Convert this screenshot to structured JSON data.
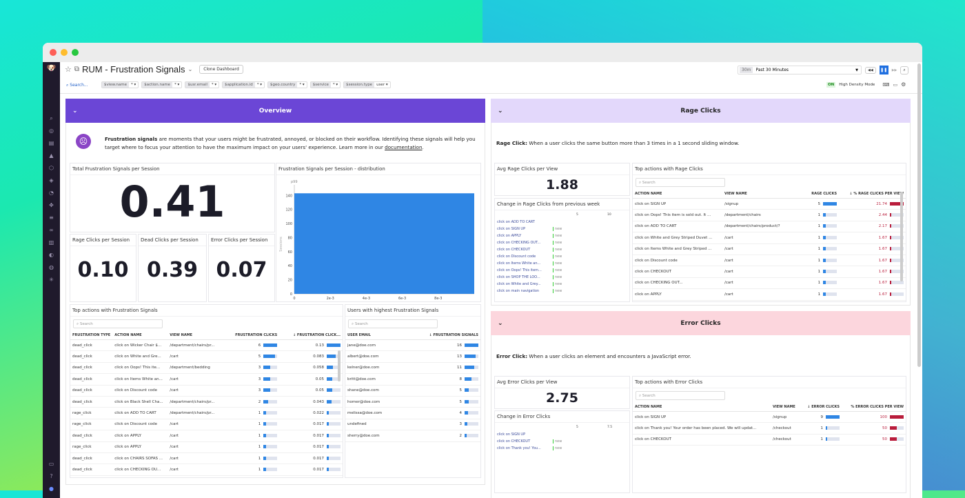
{
  "header": {
    "title": "RUM - Frustration Signals",
    "clone_button": "Clone Dashboard",
    "time_badge": "30m",
    "time_range": "Past 30 Minutes",
    "search_label": "Search...",
    "density_badge": "ON",
    "density_label": "High Density Mode"
  },
  "filters": [
    {
      "key": "$view.name",
      "value": "*"
    },
    {
      "key": "$action.name",
      "value": "*"
    },
    {
      "key": "$usr.email",
      "value": "*"
    },
    {
      "key": "$application.id",
      "value": "*"
    },
    {
      "key": "$geo.country",
      "value": "*"
    },
    {
      "key": "$service",
      "value": "*"
    },
    {
      "key": "$session.type",
      "value": "user"
    }
  ],
  "colors": {
    "overview": "#6b46d6",
    "rage": "#e3d8fb",
    "error": "#fcd6dd",
    "bar": "#2f86e4",
    "red": "#b91c3b"
  },
  "overview": {
    "title": "Overview",
    "intro_bold": "Frustration signals",
    "intro_text": " are moments that your users might be frustrated, annoyed, or blocked on their workflow. Identifying these signals will help you target where to focus your attention to have the maximum impact on your users' experience. Learn more in our ",
    "intro_link": "documentation",
    "intro_end": ".",
    "total_title": "Total Frustration Signals per Session",
    "total_value": "0.41",
    "rage_title": "Rage Clicks per Session",
    "rage_value": "0.10",
    "dead_title": "Dead Clicks per Session",
    "dead_value": "0.39",
    "error_title": "Error Clicks per Session",
    "error_value": "0.07",
    "dist_title": "Frustration Signals per Session - distribution",
    "actions_title": "Top actions with Frustration Signals",
    "actions_search": "Search",
    "actions_cols": [
      "FRUSTRATION TYPE",
      "ACTION NAME",
      "VIEW NAME",
      "FRUSTRATION CLICKS",
      "↓ FRUSTRATION CLICK..."
    ],
    "actions_rows": [
      [
        "dead_click",
        "click on Wicker Chair $...",
        "/department/chairs/pr...",
        6,
        0.13
      ],
      [
        "dead_click",
        "click on White and Gre...",
        "/cart",
        5,
        0.083
      ],
      [
        "dead_click",
        "click on Oops! This ite...",
        "/department/bedding",
        3,
        0.058
      ],
      [
        "dead_click",
        "click on Items White an...",
        "/cart",
        3,
        0.05
      ],
      [
        "dead_click",
        "click on Discount code",
        "/cart",
        3,
        0.05
      ],
      [
        "dead_click",
        "click on Black Shell Cha...",
        "/department/chairs/pr...",
        2,
        0.043
      ],
      [
        "rage_click",
        "click on ADD TO CART",
        "/department/chairs/pr...",
        1,
        0.022
      ],
      [
        "rage_click",
        "click on Discount code",
        "/cart",
        1,
        0.017
      ],
      [
        "dead_click",
        "click on APPLY",
        "/cart",
        1,
        0.017
      ],
      [
        "rage_click",
        "click on APPLY",
        "/cart",
        1,
        0.017
      ],
      [
        "dead_click",
        "click on CHAIRS SOFAS ...",
        "/cart",
        1,
        0.017
      ],
      [
        "dead_click",
        "click on CHECKING OU...",
        "/cart",
        1,
        0.017
      ]
    ],
    "users_title": "Users with highest Frustration Signals",
    "users_search": "Search",
    "users_cols": [
      "USER EMAIL",
      "↓ FRUSTRATION SIGNALS"
    ],
    "users_rows": [
      [
        "jane@doe.com",
        16
      ],
      [
        "albert@doe.com",
        13
      ],
      [
        "kelner@doe.com",
        11
      ],
      [
        "britt@doe.com",
        8
      ],
      [
        "shane@doe.com",
        5
      ],
      [
        "homer@doe.com",
        5
      ],
      [
        "melissa@doe.com",
        4
      ],
      [
        "undefined",
        3
      ],
      [
        "sherry@doe.com",
        2
      ]
    ]
  },
  "chart_data": {
    "type": "bar",
    "title": "Frustration Signals per Session - distribution",
    "ylabel": "Sessions",
    "xlabel": "",
    "marker": "p99",
    "x_ticks": [
      "0",
      "2e-3",
      "4e-3",
      "6e-3",
      "8e-3"
    ],
    "y_ticks": [
      "0",
      "20",
      "40",
      "60",
      "80",
      "100",
      "120",
      "140"
    ],
    "xlim": [
      0,
      0.01
    ],
    "ylim": [
      0,
      155
    ],
    "bins": [
      {
        "x0": 0,
        "x1": 0.01,
        "value": 143
      }
    ]
  },
  "rage": {
    "title": "Rage Clicks",
    "intro_bold": "Rage Click:",
    "intro_text": " When a user clicks the same button more than 3 times in a 1 second sliding window.",
    "avg_title": "Avg Rage Clicks per View",
    "avg_value": "1.88",
    "change_title": "Change in Rage Clicks from previous week",
    "change_ticks": [
      "5",
      "10"
    ],
    "change_items": [
      {
        "label": "click on ADD TO CART",
        "tag": ""
      },
      {
        "label": "click on SIGN UP",
        "tag": "new"
      },
      {
        "label": "click on APPLY",
        "tag": "new"
      },
      {
        "label": "click on CHECKING OUT...",
        "tag": "new"
      },
      {
        "label": "click on CHECKOUT",
        "tag": "new"
      },
      {
        "label": "click on Discount code",
        "tag": "new"
      },
      {
        "label": "click on Items White an...",
        "tag": "new"
      },
      {
        "label": "click on Oops! This item...",
        "tag": "new"
      },
      {
        "label": "click on SHOP THE LOO...",
        "tag": "new"
      },
      {
        "label": "click on White and Grey...",
        "tag": "new"
      },
      {
        "label": "click on main navigation",
        "tag": "new"
      }
    ],
    "actions_title": "Top actions with Rage Clicks",
    "actions_search": "Search",
    "actions_cols": [
      "ACTION NAME",
      "VIEW NAME",
      "RAGE CLICKS",
      "↓ % RAGE CLICKS PER VIEW"
    ],
    "actions_rows": [
      [
        "click on SIGN UP",
        "/signup",
        5,
        21.74
      ],
      [
        "click on Oops! This item is sold out. It ...",
        "/department/chairs",
        1,
        2.44
      ],
      [
        "click on ADD TO CART",
        "/department/chairs/product/?",
        1,
        2.17
      ],
      [
        "click on White and Grey Striped Duvet ...",
        "/cart",
        1,
        1.67
      ],
      [
        "click on Items White and Grey Striped ...",
        "/cart",
        1,
        1.67
      ],
      [
        "click on Discount code",
        "/cart",
        1,
        1.67
      ],
      [
        "click on CHECKOUT",
        "/cart",
        1,
        1.67
      ],
      [
        "click on CHECKING OUT...",
        "/cart",
        1,
        1.67
      ],
      [
        "click on APPLY",
        "/cart",
        1,
        1.67
      ]
    ]
  },
  "error": {
    "title": "Error Clicks",
    "intro_bold": "Error Click:",
    "intro_text": " When a user clicks an element and encounters a JavaScript error.",
    "avg_title": "Avg Error Clicks per View",
    "avg_value": "2.75",
    "change_title": "Change in Error Clicks",
    "change_ticks": [
      "5",
      "7.5"
    ],
    "change_items": [
      {
        "label": "click on SIGN UP",
        "tag": ""
      },
      {
        "label": "click on CHECKOUT",
        "tag": "new"
      },
      {
        "label": "click on Thank you! You...",
        "tag": "new"
      }
    ],
    "actions_title": "Top actions with Error Clicks",
    "actions_search": "Search",
    "actions_cols": [
      "ACTION NAME",
      "VIEW NAME",
      "↓ ERROR CLICKS",
      "% ERROR CLICKS PER VIEW"
    ],
    "actions_rows": [
      [
        "click on SIGN UP",
        "/signup",
        9,
        100
      ],
      [
        "click on Thank you! Your order has been placed. We will updat...",
        "/checkout",
        1,
        50
      ],
      [
        "click on CHECKOUT",
        "/checkout",
        1,
        50
      ]
    ]
  }
}
